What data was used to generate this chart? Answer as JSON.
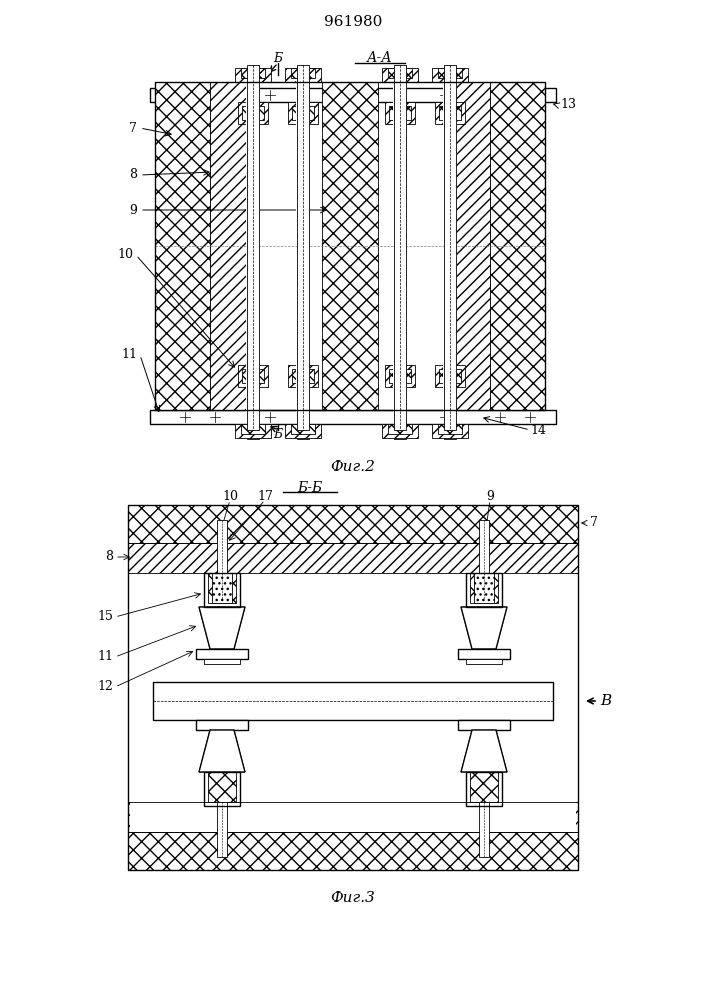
{
  "title": "961980",
  "fig2_label": "А-А",
  "fig2_caption": "Фиг.2",
  "fig3_label": "Б-Б",
  "fig3_caption": "Фиг.3",
  "bg_color": "#ffffff",
  "line_color": "#000000"
}
